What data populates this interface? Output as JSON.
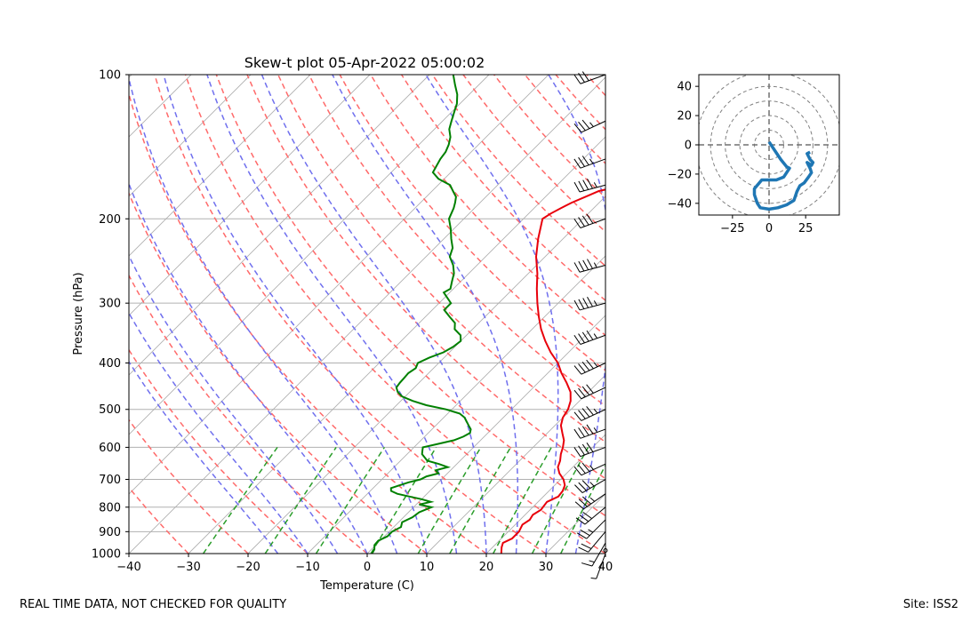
{
  "footer": {
    "left_note": "REAL TIME DATA, NOT CHECKED FOR QUALITY",
    "site": "Site: ISS2"
  },
  "colors": {
    "temperature": "#e8000b",
    "dewpoint": "#008000",
    "dry_adiabat": "#ff6a6a",
    "moist_adiabat": "#7070ee",
    "mixing_ratio": "#2a9d2a",
    "isotherm": "#b0b0b0",
    "hodograph": "#1f77b4"
  },
  "chart_data": [
    {
      "type": "line",
      "subtype": "skew-t",
      "title": "Skew-t plot 05-Apr-2022 05:00:02",
      "xlabel": "Temperature (C)",
      "ylabel": "Pressure (hPa)",
      "xlim": [
        -40,
        40
      ],
      "ylim": [
        1000,
        100
      ],
      "yscale": "log",
      "x_ticks": [
        -40,
        -30,
        -20,
        -10,
        0,
        10,
        20,
        30,
        40
      ],
      "y_ticks": [
        1000,
        900,
        800,
        700,
        600,
        500,
        400,
        300,
        200,
        100
      ],
      "grid": true,
      "series": [
        {
          "key": "temperature",
          "points": [
            [
              1000,
              22.5
            ],
            [
              970,
              21.5
            ],
            [
              950,
              21
            ],
            [
              930,
              21.8
            ],
            [
              900,
              21.8
            ],
            [
              870,
              21.2
            ],
            [
              850,
              21.6
            ],
            [
              830,
              21.3
            ],
            [
              810,
              21.8
            ],
            [
              780,
              21.5
            ],
            [
              760,
              22.5
            ],
            [
              740,
              22.3
            ],
            [
              720,
              21.7
            ],
            [
              700,
              20.5
            ],
            [
              680,
              18.8
            ],
            [
              660,
              17.5
            ],
            [
              640,
              16.8
            ],
            [
              620,
              15.8
            ],
            [
              600,
              15.0
            ],
            [
              580,
              14.0
            ],
            [
              560,
              12.5
            ],
            [
              540,
              11.0
            ],
            [
              520,
              10.0
            ],
            [
              500,
              9.5
            ],
            [
              480,
              8.5
            ],
            [
              460,
              7.0
            ],
            [
              440,
              4.8
            ],
            [
              420,
              2.3
            ],
            [
              400,
              0.0
            ],
            [
              380,
              -3.0
            ],
            [
              360,
              -5.8
            ],
            [
              340,
              -8.5
            ],
            [
              320,
              -11.0
            ],
            [
              300,
              -13.5
            ],
            [
              280,
              -16.0
            ],
            [
              260,
              -18.5
            ],
            [
              240,
              -21.5
            ],
            [
              220,
              -24.2
            ],
            [
              200,
              -26.8
            ],
            [
              195,
              -26.3
            ],
            [
              190,
              -25.5
            ],
            [
              185,
              -24.6
            ],
            [
              180,
              -23.3
            ],
            [
              175,
              -22.0
            ],
            [
              170,
              -18.5
            ],
            [
              165,
              -16.2
            ],
            [
              160,
              -14.3
            ],
            [
              155,
              -13.0
            ],
            [
              150,
              -11.8
            ],
            [
              145,
              -10.8
            ],
            [
              140,
              -10.2
            ],
            [
              135,
              -9.9
            ],
            [
              130,
              -10.0
            ],
            [
              125,
              -9.9
            ],
            [
              120,
              -9.2
            ],
            [
              115,
              -7.5
            ],
            [
              110,
              -5.8
            ],
            [
              105,
              -5.3
            ],
            [
              100,
              -5.4
            ]
          ]
        },
        {
          "key": "dewpoint",
          "points": [
            [
              1000,
              0.8
            ],
            [
              980,
              0.5
            ],
            [
              960,
              -0.2
            ],
            [
              940,
              -0.3
            ],
            [
              920,
              0.5
            ],
            [
              900,
              0.5
            ],
            [
              880,
              1.2
            ],
            [
              860,
              0.6
            ],
            [
              840,
              1.5
            ],
            [
              820,
              1.8
            ],
            [
              800,
              3.0
            ],
            [
              790,
              0.5
            ],
            [
              780,
              2.0
            ],
            [
              770,
              0.0
            ],
            [
              760,
              -2.5
            ],
            [
              750,
              -5.0
            ],
            [
              740,
              -6.5
            ],
            [
              730,
              -7.0
            ],
            [
              720,
              -6.0
            ],
            [
              710,
              -5.0
            ],
            [
              700,
              -3.5
            ],
            [
              690,
              -3.0
            ],
            [
              680,
              -1.5
            ],
            [
              670,
              -2.5
            ],
            [
              660,
              -1.0
            ],
            [
              650,
              -3.0
            ],
            [
              640,
              -5.5
            ],
            [
              630,
              -6.5
            ],
            [
              620,
              -7.5
            ],
            [
              610,
              -8.0
            ],
            [
              600,
              -8.5
            ],
            [
              590,
              -6.5
            ],
            [
              580,
              -4.5
            ],
            [
              570,
              -3.5
            ],
            [
              560,
              -3.0
            ],
            [
              550,
              -3.5
            ],
            [
              540,
              -4.5
            ],
            [
              530,
              -5.5
            ],
            [
              520,
              -6.5
            ],
            [
              510,
              -8.0
            ],
            [
              500,
              -11.0
            ],
            [
              490,
              -15.0
            ],
            [
              480,
              -18.0
            ],
            [
              470,
              -20.5
            ],
            [
              460,
              -22.0
            ],
            [
              450,
              -23.0
            ],
            [
              440,
              -23.2
            ],
            [
              430,
              -23.3
            ],
            [
              420,
              -23.4
            ],
            [
              410,
              -23.0
            ],
            [
              400,
              -23.5
            ],
            [
              390,
              -22.5
            ],
            [
              380,
              -21.0
            ],
            [
              370,
              -20.3
            ],
            [
              360,
              -20.0
            ],
            [
              350,
              -21.0
            ],
            [
              340,
              -23.0
            ],
            [
              330,
              -24.0
            ],
            [
              320,
              -26.0
            ],
            [
              310,
              -28.0
            ],
            [
              300,
              -28.0
            ],
            [
              295,
              -29.0
            ],
            [
              290,
              -30.0
            ],
            [
              285,
              -31.0
            ],
            [
              280,
              -30.5
            ],
            [
              270,
              -31.5
            ],
            [
              260,
              -32.5
            ],
            [
              250,
              -34.0
            ],
            [
              240,
              -36.0
            ],
            [
              230,
              -37.0
            ],
            [
              220,
              -38.8
            ],
            [
              210,
              -40.5
            ],
            [
              200,
              -42.5
            ],
            [
              190,
              -43.5
            ],
            [
              185,
              -44.2
            ],
            [
              180,
              -45.0
            ],
            [
              175,
              -46.5
            ],
            [
              170,
              -48.0
            ],
            [
              165,
              -51.0
            ],
            [
              160,
              -53.0
            ],
            [
              155,
              -53.5
            ],
            [
              150,
              -54.0
            ],
            [
              145,
              -54.3
            ],
            [
              140,
              -55.0
            ],
            [
              135,
              -56.0
            ],
            [
              130,
              -57.5
            ],
            [
              125,
              -58.5
            ],
            [
              120,
              -59.5
            ],
            [
              115,
              -60.5
            ],
            [
              110,
              -62.0
            ],
            [
              105,
              -64.0
            ],
            [
              100,
              -66.0
            ]
          ]
        }
      ],
      "wind_barbs": [
        {
          "p": 1000,
          "speed_kt": 5,
          "dir_deg": 200
        },
        {
          "p": 950,
          "speed_kt": 15,
          "dir_deg": 210
        },
        {
          "p": 900,
          "speed_kt": 20,
          "dir_deg": 220
        },
        {
          "p": 850,
          "speed_kt": 25,
          "dir_deg": 225
        },
        {
          "p": 800,
          "speed_kt": 30,
          "dir_deg": 230
        },
        {
          "p": 750,
          "speed_kt": 35,
          "dir_deg": 235
        },
        {
          "p": 700,
          "speed_kt": 35,
          "dir_deg": 240
        },
        {
          "p": 650,
          "speed_kt": 35,
          "dir_deg": 245
        },
        {
          "p": 600,
          "speed_kt": 40,
          "dir_deg": 250
        },
        {
          "p": 550,
          "speed_kt": 45,
          "dir_deg": 250
        },
        {
          "p": 500,
          "speed_kt": 45,
          "dir_deg": 245
        },
        {
          "p": 450,
          "speed_kt": 40,
          "dir_deg": 245
        },
        {
          "p": 400,
          "speed_kt": 45,
          "dir_deg": 245
        },
        {
          "p": 350,
          "speed_kt": 45,
          "dir_deg": 250
        },
        {
          "p": 300,
          "speed_kt": 45,
          "dir_deg": 255
        },
        {
          "p": 250,
          "speed_kt": 45,
          "dir_deg": 255
        },
        {
          "p": 200,
          "speed_kt": 40,
          "dir_deg": 250
        },
        {
          "p": 170,
          "speed_kt": 45,
          "dir_deg": 255
        },
        {
          "p": 150,
          "speed_kt": 35,
          "dir_deg": 250
        },
        {
          "p": 125,
          "speed_kt": 35,
          "dir_deg": 245
        },
        {
          "p": 100,
          "speed_kt": 30,
          "dir_deg": 250
        }
      ]
    },
    {
      "type": "line",
      "subtype": "hodograph",
      "xlim": [
        -48,
        48
      ],
      "ylim": [
        -48,
        48
      ],
      "x_ticks": [
        -25,
        0,
        25
      ],
      "y_ticks": [
        -40,
        -20,
        0,
        20,
        40
      ],
      "rings": [
        10,
        20,
        30,
        40,
        50
      ],
      "u": [
        0,
        4,
        8,
        12,
        14,
        10,
        5,
        -5,
        -10,
        -10,
        -8,
        -6,
        0,
        6,
        12,
        17,
        19,
        21,
        24,
        27,
        29,
        28,
        26,
        29,
        30,
        28,
        26,
        28
      ],
      "v": [
        2,
        -4,
        -10,
        -15,
        -16,
        -22,
        -24,
        -24,
        -30,
        -34,
        -40,
        -43,
        -44,
        -43,
        -41,
        -38,
        -32,
        -28,
        -26,
        -22,
        -19,
        -16,
        -12,
        -14,
        -12,
        -10,
        -6,
        -5
      ]
    }
  ]
}
